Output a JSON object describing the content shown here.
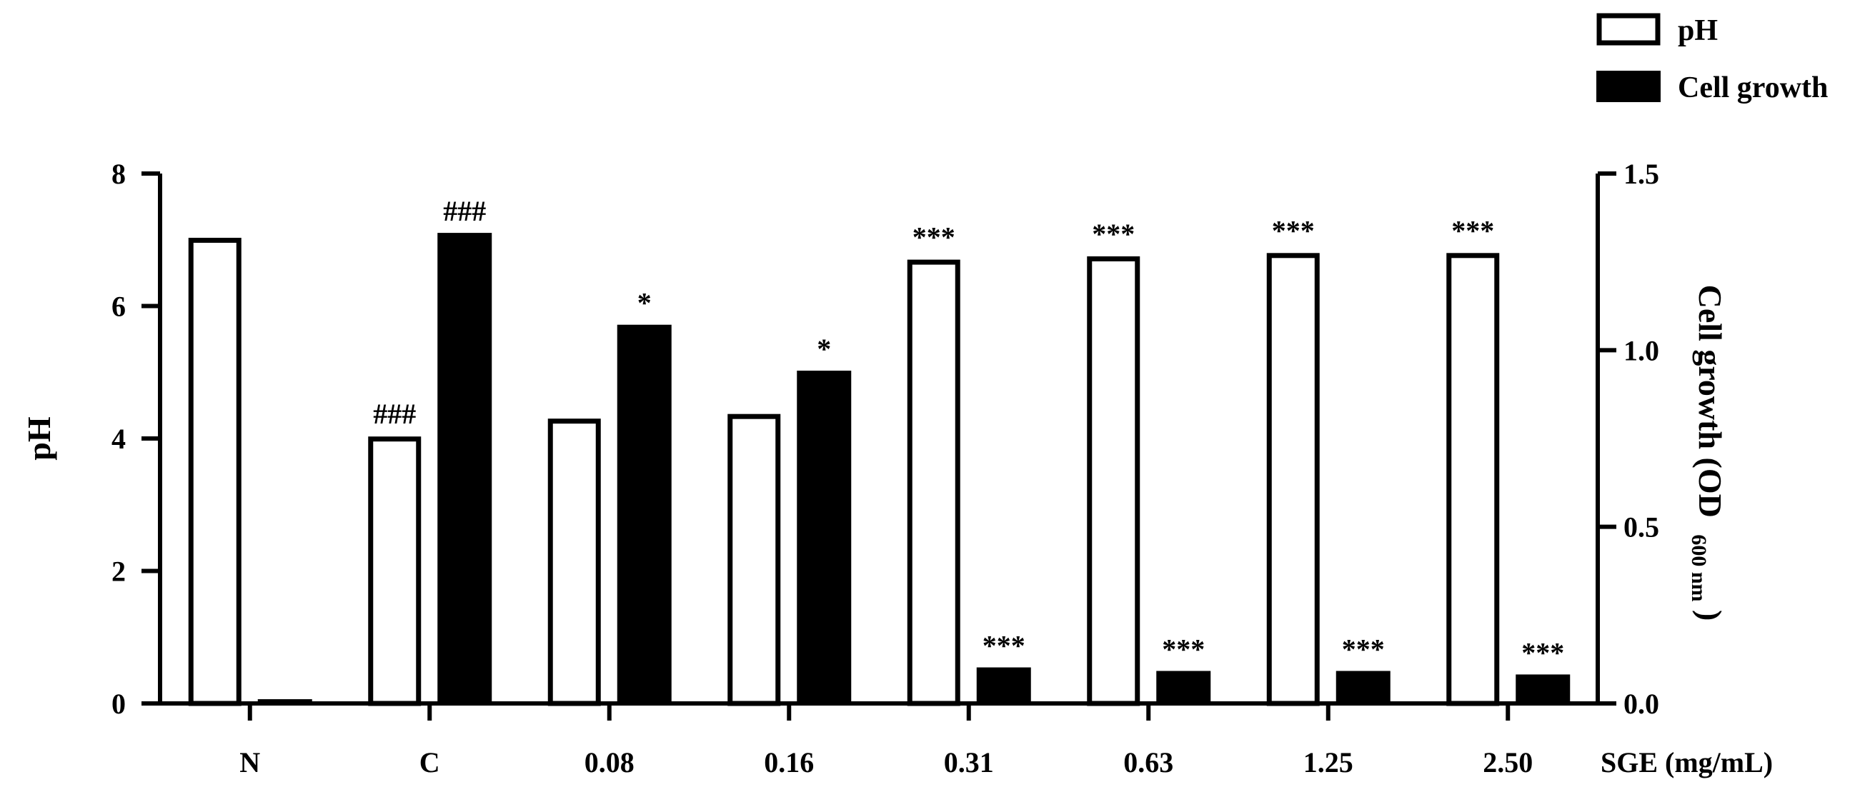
{
  "chart_data": {
    "type": "bar",
    "categories": [
      "N",
      "C",
      "0.08",
      "0.16",
      "0.31",
      "0.63",
      "1.25",
      "2.50"
    ],
    "x_suffix_label": "SGE (mg/mL)",
    "ylabel_left": "pH",
    "ylabel_right": "Cell growth (OD",
    "ylabel_right_subscript": "600 nm",
    "ylabel_right_close": ")",
    "ylim_left": [
      0,
      8
    ],
    "ylim_right": [
      0,
      1.5
    ],
    "yticks_left": [
      "0",
      "2",
      "4",
      "6",
      "8"
    ],
    "yticks_right": [
      "0.0",
      "0.5",
      "1.0",
      "1.5"
    ],
    "legend_position": "top-right",
    "series": [
      {
        "name": "pH",
        "axis": "left",
        "style": "open",
        "values": [
          7.03,
          4.03,
          4.3,
          4.37,
          6.7,
          6.75,
          6.8,
          6.8
        ],
        "annotations": [
          "",
          "###",
          "",
          "",
          "***",
          "***",
          "***",
          "***"
        ]
      },
      {
        "name": "Cell growth",
        "axis": "right",
        "style": "filled",
        "values": [
          0.01,
          1.33,
          1.07,
          0.94,
          0.1,
          0.09,
          0.09,
          0.08
        ],
        "annotations": [
          "",
          "###",
          "*",
          "*",
          "***",
          "***",
          "***",
          "***"
        ]
      }
    ],
    "colors": {
      "open_fill": "#ffffff",
      "filled_fill": "#000000",
      "stroke": "#000000"
    }
  }
}
